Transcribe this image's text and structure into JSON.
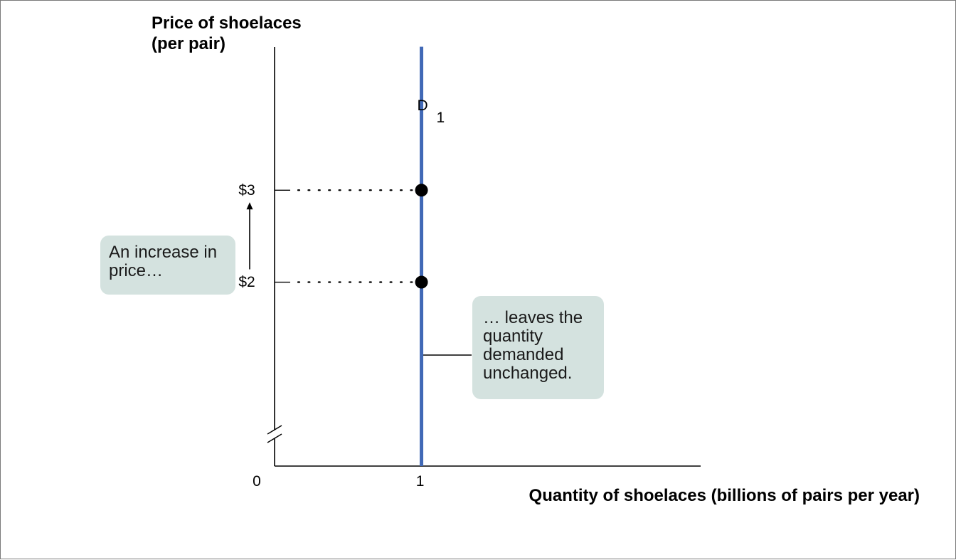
{
  "chart_data": {
    "type": "line",
    "xlabel": "Quantity of shoelaces (billions of pairs per year)",
    "ylabel": [
      "Price of shoelaces",
      "(per pair)"
    ],
    "origin_label": "0",
    "x_ticks": [
      {
        "value": 1,
        "label": "1"
      }
    ],
    "y_ticks": [
      {
        "value": 2,
        "label": "$2"
      },
      {
        "value": 3,
        "label": "$3"
      }
    ],
    "xlim": [
      0,
      2.9
    ],
    "ylim": [
      0,
      4.6
    ],
    "y_axis_break": true,
    "series": [
      {
        "name": "D",
        "subscript": "1",
        "color": "#4169b6",
        "points": [
          {
            "x": 1,
            "y": 0
          },
          {
            "x": 1,
            "y": 4.56
          }
        ]
      }
    ],
    "markers": [
      {
        "x": 1,
        "y": 3
      },
      {
        "x": 1,
        "y": 2
      }
    ],
    "price_arrow": {
      "from": 2,
      "to": 3
    }
  },
  "annotations": {
    "increase": [
      "An increase in",
      "price…"
    ],
    "unchanged": [
      "… leaves the",
      "quantity",
      "demanded",
      "unchanged."
    ]
  }
}
